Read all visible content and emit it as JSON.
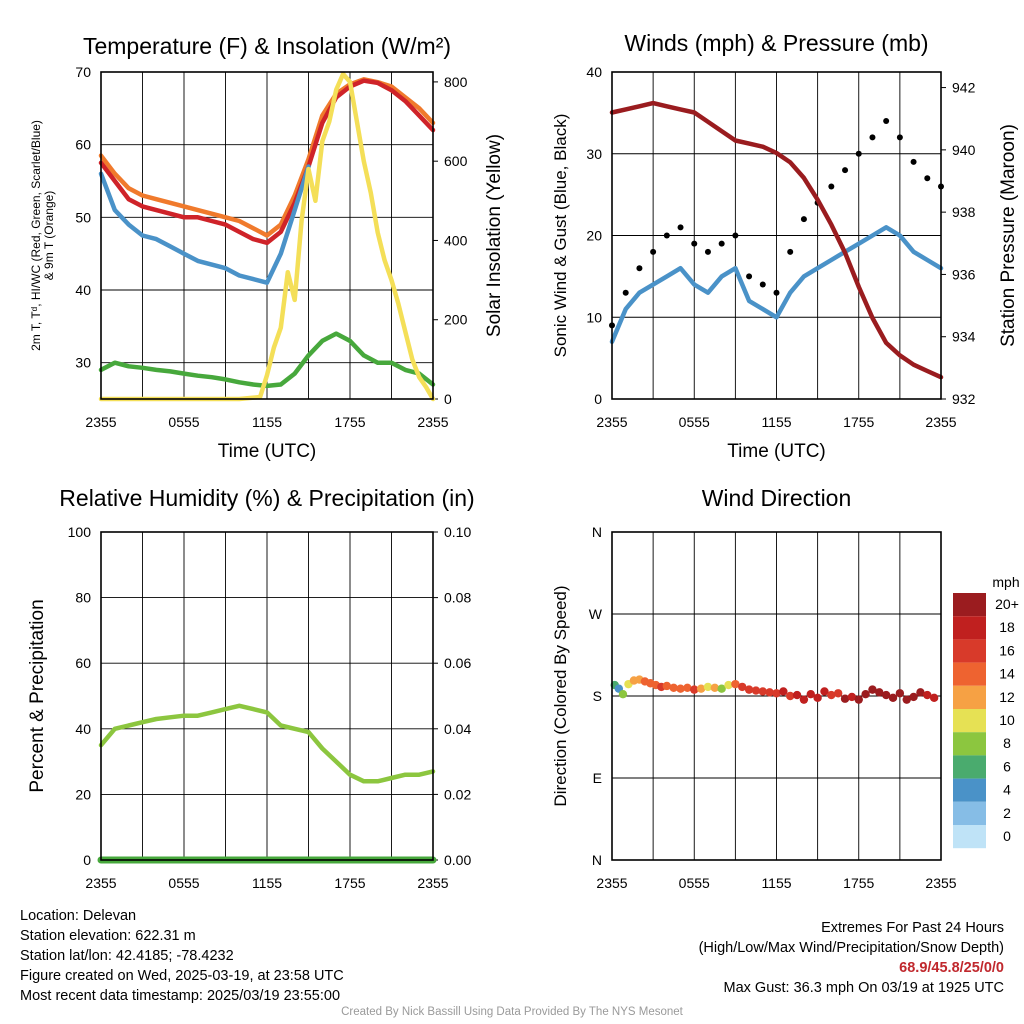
{
  "chart_data": [
    {
      "id": "temp",
      "type": "line",
      "title": "Temperature (F) & Insolation (W/m²)",
      "xlabel": "Time (UTC)",
      "ylabel_left_lines": [
        "2m T, Tᵈ, HI/WC (Red, Green, Scarlet/Blue)",
        "& 9m T (Orange)"
      ],
      "ylabel_right": "Solar Insolation (Yellow)",
      "x_ticks": [
        "2355",
        "0555",
        "1155",
        "1755",
        "2355"
      ],
      "x_range": [
        0,
        24
      ],
      "ylim": [
        25,
        70
      ],
      "y_ticks": [
        30,
        40,
        50,
        60,
        70
      ],
      "y2lim": [
        0,
        825
      ],
      "y2_ticks": [
        0,
        200,
        400,
        600,
        800
      ],
      "grid": true,
      "series": [
        {
          "color": "#f07a2c",
          "axis": "left",
          "x": [
            0,
            1,
            2,
            3,
            4,
            5,
            6,
            7,
            8,
            9,
            10,
            11,
            12,
            13,
            14,
            15,
            16,
            17,
            18,
            19,
            20,
            21,
            22,
            23,
            24
          ],
          "values": [
            58.5,
            56,
            54,
            53,
            52.5,
            52,
            51.5,
            51,
            50.5,
            50,
            49.5,
            48.5,
            47.5,
            49,
            53,
            58,
            64,
            67,
            68.3,
            69,
            68.6,
            68,
            66.5,
            65,
            63
          ]
        },
        {
          "color": "#cf2329",
          "axis": "left",
          "x": [
            0,
            1,
            2,
            3,
            4,
            5,
            6,
            7,
            8,
            9,
            10,
            11,
            12,
            13,
            14,
            15,
            16,
            17,
            18,
            19,
            20,
            21,
            22,
            23,
            24
          ],
          "values": [
            57.5,
            55,
            52.5,
            51.5,
            51,
            50.5,
            50,
            50,
            49.5,
            49,
            48,
            47,
            46.5,
            48,
            52,
            57,
            63,
            66.5,
            68,
            68.8,
            68.5,
            67.5,
            66,
            64,
            62
          ]
        },
        {
          "color": "#4a92c8",
          "axis": "left",
          "x": [
            0,
            1,
            2,
            3,
            4,
            5,
            6,
            7,
            8,
            9,
            10,
            11,
            12,
            13,
            14,
            15
          ],
          "values": [
            56,
            51,
            49,
            47.5,
            47,
            46,
            45,
            44,
            43.5,
            43,
            42,
            41.5,
            41,
            45,
            51,
            57
          ]
        },
        {
          "color": "#47a83c",
          "axis": "left",
          "x": [
            0,
            1,
            2,
            3,
            4,
            5,
            6,
            7,
            8,
            9,
            10,
            11,
            12,
            13,
            14,
            15,
            16,
            17,
            18,
            19,
            20,
            21,
            22,
            23,
            24
          ],
          "values": [
            29,
            30,
            29.5,
            29.3,
            29,
            28.8,
            28.5,
            28.2,
            28,
            27.7,
            27.3,
            27,
            26.8,
            27,
            28.5,
            31,
            33,
            34,
            33,
            31,
            30,
            30,
            29,
            28.5,
            27
          ]
        },
        {
          "color": "#f4df58",
          "axis": "right",
          "x": [
            0,
            10,
            11.5,
            12,
            12.5,
            13,
            13.5,
            14,
            14.5,
            15,
            15.5,
            16,
            16.5,
            17,
            17.5,
            18,
            18.5,
            19,
            19.5,
            20,
            20.5,
            21,
            21.5,
            22,
            22.5,
            23,
            23.5,
            24
          ],
          "values": [
            0,
            0,
            5,
            60,
            130,
            180,
            320,
            250,
            450,
            580,
            500,
            650,
            700,
            780,
            820,
            800,
            700,
            600,
            520,
            420,
            350,
            300,
            240,
            170,
            100,
            55,
            30,
            0
          ]
        }
      ]
    },
    {
      "id": "winds",
      "type": "line",
      "title": "Winds (mph) & Pressure (mb)",
      "xlabel": "Time (UTC)",
      "ylabel": "Sonic Wind & Gust (Blue, Black)",
      "ylabel_right": "Station Pressure (Maroon)",
      "x_ticks": [
        "2355",
        "0555",
        "1155",
        "1755",
        "2355"
      ],
      "x_range": [
        0,
        24
      ],
      "ylim": [
        0,
        40
      ],
      "y_ticks": [
        0,
        10,
        20,
        30,
        40
      ],
      "y2lim": [
        932,
        942.5
      ],
      "y2_ticks": [
        932,
        934,
        936,
        938,
        940,
        942
      ],
      "grid": true,
      "series": [
        {
          "color": "#4a92c8",
          "axis": "left",
          "x": [
            0,
            1,
            2,
            3,
            4,
            5,
            6,
            7,
            8,
            9,
            10,
            11,
            12,
            13,
            14,
            15,
            16,
            17,
            18,
            19,
            20,
            21,
            22,
            23,
            24
          ],
          "values": [
            7,
            11,
            13,
            14,
            15,
            16,
            14,
            13,
            15,
            16,
            12,
            11,
            10,
            13,
            15,
            16,
            17,
            18,
            19,
            20,
            21,
            20,
            18,
            17,
            16
          ]
        },
        {
          "color": "#000000",
          "axis": "left",
          "marker": "dot",
          "x": [
            0,
            1,
            2,
            3,
            4,
            5,
            6,
            7,
            8,
            9,
            10,
            11,
            12,
            13,
            14,
            15,
            16,
            17,
            18,
            19,
            20,
            21,
            22,
            23,
            24
          ],
          "values": [
            9,
            13,
            16,
            18,
            20,
            21,
            19,
            18,
            19,
            20,
            15,
            14,
            13,
            18,
            22,
            24,
            26,
            28,
            30,
            32,
            34,
            32,
            29,
            27,
            26
          ]
        },
        {
          "color": "#9a1c1f",
          "axis": "right",
          "x": [
            0,
            1,
            2,
            3,
            4,
            5,
            6,
            7,
            8,
            9,
            10,
            11,
            12,
            13,
            14,
            15,
            16,
            17,
            18,
            19,
            20,
            21,
            22,
            23,
            24
          ],
          "values": [
            941.2,
            941.3,
            941.4,
            941.5,
            941.4,
            941.3,
            941.2,
            940.9,
            940.6,
            940.3,
            940.2,
            940.1,
            939.9,
            939.6,
            939.1,
            938.4,
            937.6,
            936.7,
            935.6,
            934.6,
            933.8,
            933.4,
            933.1,
            932.9,
            932.7
          ]
        }
      ]
    },
    {
      "id": "rh",
      "type": "line",
      "title": "Relative Humidity (%) & Precipitation (in)",
      "xlabel": "",
      "ylabel": "Percent & Precipitation",
      "x_ticks": [
        "2355",
        "0555",
        "1155",
        "1755",
        "2355"
      ],
      "x_range": [
        0,
        24
      ],
      "ylim": [
        0,
        100
      ],
      "y_ticks": [
        0,
        20,
        40,
        60,
        80,
        100
      ],
      "y2lim": [
        0,
        0.1
      ],
      "y2_ticks": [
        "0.00",
        "0.02",
        "0.04",
        "0.06",
        "0.08",
        "0.10"
      ],
      "grid": true,
      "series": [
        {
          "color": "#8cc63f",
          "axis": "left",
          "x": [
            0,
            1,
            2,
            3,
            4,
            5,
            6,
            7,
            8,
            9,
            10,
            11,
            12,
            13,
            14,
            15,
            16,
            17,
            18,
            19,
            20,
            21,
            22,
            23,
            24
          ],
          "values": [
            35,
            40,
            41,
            42,
            43,
            43.5,
            44,
            44,
            45,
            46,
            47,
            46,
            45,
            41,
            40,
            39,
            34,
            30,
            26,
            24,
            24,
            25,
            26,
            26,
            27
          ]
        },
        {
          "color": "#47a83c",
          "axis": "right",
          "x": [
            0,
            24
          ],
          "values": [
            0,
            0
          ]
        }
      ]
    },
    {
      "id": "wdir",
      "type": "scatter",
      "title": "Wind Direction",
      "xlabel": "",
      "ylabel": "Direction (Colored By Speed)",
      "x_ticks": [
        "2355",
        "0555",
        "1155",
        "1755",
        "2355"
      ],
      "x_range": [
        0,
        24
      ],
      "ylim": [
        0,
        360
      ],
      "y_ticks": [
        "N",
        "E",
        "S",
        "W",
        "N"
      ],
      "grid": true,
      "colorbar": {
        "title": "mph",
        "labels": [
          "20+",
          "18",
          "16",
          "14",
          "12",
          "10",
          "8",
          "6",
          "4",
          "2",
          "0"
        ],
        "colors": [
          "#9b1c1f",
          "#c0201f",
          "#d83a2a",
          "#ee6330",
          "#f6a144",
          "#e6e154",
          "#8cc63f",
          "#4aab6e",
          "#4a92c8",
          "#86bde6",
          "#bfe3f7"
        ]
      },
      "points": {
        "x": [
          0.2,
          0.5,
          0.8,
          1.2,
          1.6,
          2,
          2.4,
          2.8,
          3.2,
          3.6,
          4,
          4.5,
          5,
          5.5,
          6,
          6.5,
          7,
          7.5,
          8,
          8.5,
          9,
          9.5,
          10,
          10.5,
          11,
          11.5,
          12,
          12.5,
          13,
          13.5,
          14,
          14.5,
          15,
          15.5,
          16,
          16.5,
          17,
          17.5,
          18,
          18.5,
          19,
          19.5,
          20,
          20.5,
          21,
          21.5,
          22,
          22.5,
          23,
          23.5
        ],
        "dir": [
          192,
          188,
          182,
          193,
          197,
          198,
          196,
          194,
          192,
          190,
          191,
          189,
          188,
          189,
          187,
          188,
          190,
          189,
          188,
          192,
          193,
          190,
          187,
          186,
          185,
          184,
          183,
          185,
          180,
          181,
          176,
          182,
          178,
          185,
          181,
          183,
          177,
          179,
          176,
          182,
          187,
          184,
          181,
          178,
          183,
          176,
          179,
          184,
          181,
          178
        ],
        "speed": [
          6,
          5,
          8,
          10,
          12,
          13,
          14,
          14,
          15,
          16,
          15,
          15,
          14,
          15,
          16,
          12,
          11,
          13,
          9,
          10,
          15,
          16,
          16,
          17,
          17,
          17,
          17,
          18,
          17,
          18,
          19,
          18,
          18,
          19,
          17,
          16,
          20,
          19,
          20,
          21,
          21,
          20,
          21,
          20,
          20,
          21,
          20,
          20,
          19,
          18
        ]
      }
    }
  ],
  "info_left": [
    "Location: Delevan",
    "Station elevation: 622.31 m",
    "Station lat/lon: 42.4185; -78.4232",
    "Figure created on Wed, 2025-03-19, at 23:58 UTC",
    "Most recent data timestamp: 2025/03/19 23:55:00"
  ],
  "info_right": {
    "line1": "Extremes For Past 24 Hours",
    "line2": "(High/Low/Max Wind/Precipitation/Snow Depth)",
    "extremes": "68.9/45.8/25/0/0",
    "max_gust": "Max Gust: 36.3 mph On 03/19 at 1925 UTC"
  },
  "credit": "Created By Nick Bassill Using Data Provided By The NYS Mesonet"
}
